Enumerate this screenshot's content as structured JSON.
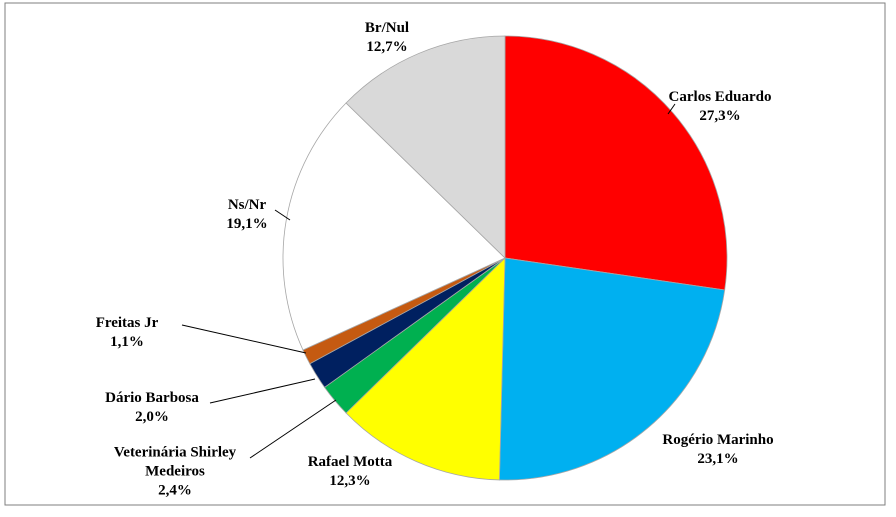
{
  "chart_data": {
    "type": "pie",
    "categories": [
      "Carlos Eduardo",
      "Rogério Marinho",
      "Rafael Motta",
      "Veterinária Shirley Medeiros",
      "Dário Barbosa",
      "Freitas Jr",
      "Ns/Nr",
      "Br/Nul"
    ],
    "values": [
      27.3,
      23.1,
      12.3,
      2.4,
      2.0,
      1.1,
      19.1,
      12.7
    ],
    "value_labels": [
      "27,3%",
      "23,1%",
      "12,3%",
      "2,4%",
      "2,0%",
      "1,1%",
      "19,1%",
      "12,7%"
    ],
    "colors": [
      "#ff0000",
      "#00b0f0",
      "#ffff00",
      "#00b050",
      "#002060",
      "#c55a11",
      "#ffffff",
      "#d9d9d9"
    ]
  }
}
